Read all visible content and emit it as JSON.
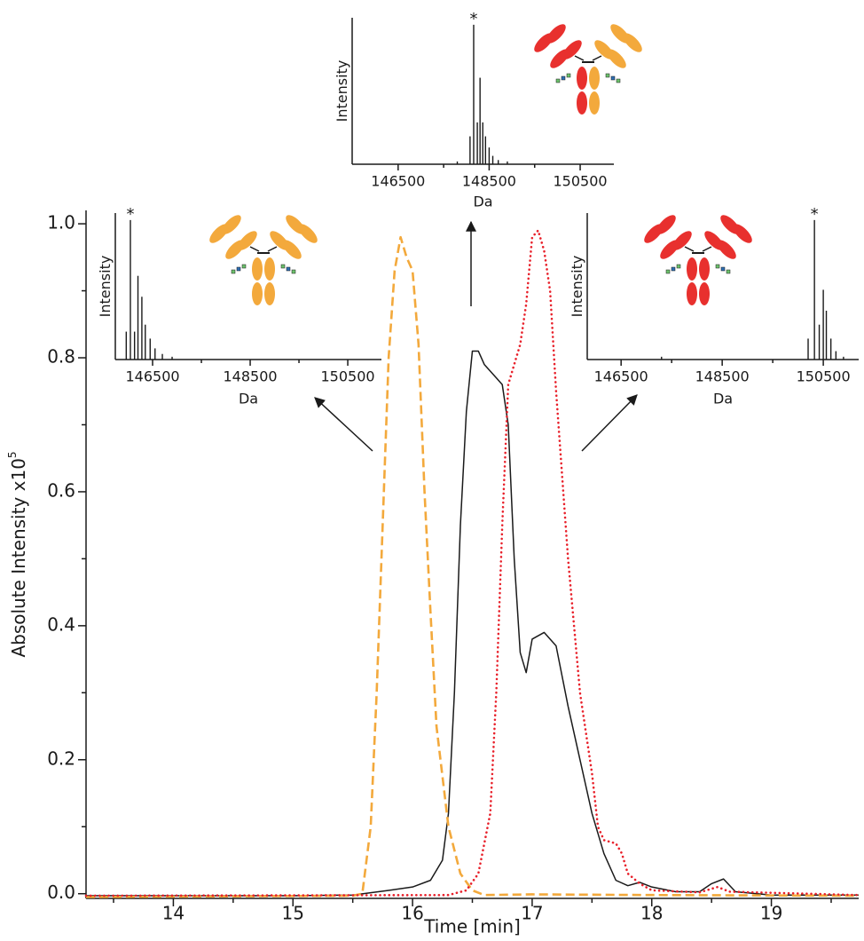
{
  "chart_data": [
    {
      "type": "line",
      "x_label": "Time [min]",
      "y_label": "Absolute Intensity x10",
      "y_label_superscript": "5",
      "xlim": [
        13.27,
        19.73
      ],
      "ylim": [
        -0.007,
        1.02
      ],
      "xticks": [
        14,
        15,
        16,
        17,
        18,
        19
      ],
      "x_minor_ticks": [
        13.5,
        14.5,
        15.5,
        16.5,
        17.5,
        18.5,
        19.5
      ],
      "yticks": [
        {
          "value": 0,
          "label": "0.0"
        },
        0.2,
        0.4,
        0.6,
        0.8,
        {
          "value": 1,
          "label": "1.0"
        }
      ],
      "y_minor_ticks": [
        0.1,
        0.3,
        0.5,
        0.7,
        0.9
      ],
      "series": [
        {
          "color": "#1a1a1a",
          "style": "solid",
          "x": [
            13.27,
            14,
            15,
            15.5,
            15.8,
            16.0,
            16.15,
            16.25,
            16.3,
            16.35,
            16.4,
            16.45,
            16.5,
            16.55,
            16.6,
            16.7,
            16.75,
            16.8,
            16.85,
            16.9,
            16.95,
            17.0,
            17.1,
            17.2,
            17.3,
            17.4,
            17.5,
            17.6,
            17.7,
            17.8,
            17.9,
            18.0,
            18.2,
            18.4,
            18.5,
            18.6,
            18.7,
            19.0,
            19.73
          ],
          "values": [
            -0.003,
            -0.003,
            -0.003,
            -0.002,
            0.005,
            0.01,
            0.02,
            0.05,
            0.12,
            0.3,
            0.55,
            0.72,
            0.81,
            0.81,
            0.79,
            0.77,
            0.76,
            0.7,
            0.5,
            0.36,
            0.33,
            0.38,
            0.39,
            0.37,
            0.28,
            0.2,
            0.12,
            0.06,
            0.02,
            0.012,
            0.017,
            0.01,
            0.003,
            0.003,
            0.015,
            0.022,
            0.003,
            -0.002,
            -0.002
          ]
        },
        {
          "color": "#f3a93c",
          "style": "dashed",
          "x": [
            13.27,
            15.5,
            15.58,
            15.65,
            15.7,
            15.75,
            15.8,
            15.85,
            15.9,
            15.95,
            16.0,
            16.05,
            16.1,
            16.15,
            16.2,
            16.3,
            16.4,
            16.5,
            16.6,
            17,
            18,
            19.73
          ],
          "values": [
            -0.005,
            -0.003,
            0.0,
            0.1,
            0.3,
            0.55,
            0.8,
            0.93,
            0.98,
            0.95,
            0.93,
            0.82,
            0.6,
            0.42,
            0.25,
            0.1,
            0.03,
            0.005,
            -0.002,
            -0.001,
            -0.002,
            -0.003
          ]
        },
        {
          "color": "#e8202a",
          "style": "dotted",
          "x": [
            13.27,
            16.3,
            16.45,
            16.55,
            16.65,
            16.7,
            16.75,
            16.8,
            16.9,
            16.95,
            17.0,
            17.05,
            17.1,
            17.15,
            17.2,
            17.3,
            17.4,
            17.5,
            17.55,
            17.6,
            17.7,
            17.75,
            17.8,
            17.9,
            18.0,
            18.4,
            18.55,
            18.65,
            19.73
          ],
          "values": [
            -0.003,
            -0.002,
            0.005,
            0.03,
            0.12,
            0.3,
            0.55,
            0.76,
            0.82,
            0.88,
            0.98,
            0.99,
            0.96,
            0.9,
            0.75,
            0.5,
            0.3,
            0.18,
            0.1,
            0.08,
            0.075,
            0.06,
            0.03,
            0.015,
            0.005,
            0.002,
            0.01,
            0.003,
            -0.002
          ]
        }
      ]
    },
    {
      "type": "stem",
      "x_label": "Da",
      "y_label": "Intensity",
      "annotation": "*",
      "color": "#1a1a1a",
      "xlim": [
        145490,
        151240
      ],
      "ylim": [
        0,
        1.05
      ],
      "xticks": [
        146500,
        148500,
        150500
      ],
      "x_minor_ticks": [
        147500,
        149500
      ],
      "x": [
        147800,
        148080,
        148160,
        148240,
        148300,
        148360,
        148420,
        148500,
        148580,
        148700,
        148900
      ],
      "values": [
        0.02,
        0.2,
        1.0,
        0.3,
        0.62,
        0.3,
        0.2,
        0.12,
        0.06,
        0.03,
        0.02
      ]
    },
    {
      "type": "stem",
      "x_label": "Da",
      "y_label": "Intensity",
      "annotation": "*",
      "color": "#1a1a1a",
      "xlim": [
        145736,
        151190
      ],
      "ylim": [
        0,
        1.05
      ],
      "xticks": [
        146500,
        148500,
        150500
      ],
      "x_minor_ticks": [
        147500,
        149500
      ],
      "x": [
        145960,
        146045,
        146130,
        146200,
        146280,
        146350,
        146450,
        146550,
        146700,
        146900
      ],
      "values": [
        0.2,
        1.0,
        0.2,
        0.6,
        0.45,
        0.25,
        0.15,
        0.08,
        0.04,
        0.02
      ]
    },
    {
      "type": "stem",
      "x_label": "Da",
      "y_label": "Intensity",
      "annotation": "*",
      "color": "#1a1a1a",
      "xlim": [
        145830,
        151200
      ],
      "ylim": [
        0,
        1.05
      ],
      "xticks": [
        146500,
        148500,
        150500
      ],
      "x_minor_ticks": [
        147500,
        149500
      ],
      "x": [
        147300,
        150200,
        150325,
        150420,
        150500,
        150560,
        150650,
        150750,
        150900
      ],
      "values": [
        0.02,
        0.15,
        1.0,
        0.25,
        0.5,
        0.35,
        0.15,
        0.06,
        0.02
      ]
    }
  ]
}
